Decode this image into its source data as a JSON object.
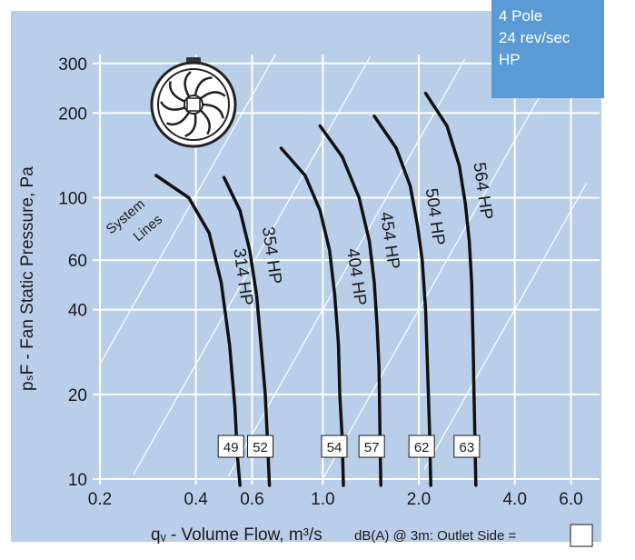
{
  "colors": {
    "panel": "#b9cfe9",
    "grid": "#ffffff",
    "curve": "#111111",
    "info_box": "#5b9bd5",
    "text": "#1a1a1a"
  },
  "info_box": {
    "lines": [
      "4 Pole",
      "24 rev/sec",
      "HP"
    ]
  },
  "legend_note": "dB(A) @ 3m:  Outlet  Side =",
  "fan_icon": "axial-fan-icon",
  "chart_data": {
    "type": "line",
    "x_scale": "log",
    "y_scale": "log",
    "xlabel": "qᵥ - Volume Flow, m³/s",
    "ylabel": "pₛF - Fan Static Pressure, Pa",
    "xlim": [
      0.2,
      7.0
    ],
    "ylim": [
      10,
      330
    ],
    "x_ticks": [
      0.2,
      0.4,
      0.6,
      1.0,
      2.0,
      4.0,
      6.0
    ],
    "x_tick_labels": [
      "0.2",
      "0.4",
      "0.6",
      "1.0",
      "2.0",
      "4.0",
      "6.0"
    ],
    "y_ticks": [
      10,
      20,
      40,
      60,
      100,
      200,
      300
    ],
    "y_tick_labels": [
      "10",
      "20",
      "40",
      "60",
      "100",
      "200",
      "300"
    ],
    "system_lines_label": "System Lines",
    "system_lines": [
      {
        "k": 2.5
      },
      {
        "k": 10
      },
      {
        "k": 40
      },
      {
        "k": 160
      },
      {
        "k": 640
      }
    ],
    "series": [
      {
        "name": "314 HP",
        "db": "49",
        "points": [
          [
            0.3,
            120
          ],
          [
            0.38,
            100
          ],
          [
            0.44,
            75
          ],
          [
            0.48,
            50
          ],
          [
            0.51,
            30
          ],
          [
            0.53,
            18
          ],
          [
            0.54,
            12
          ],
          [
            0.55,
            9.5
          ]
        ]
      },
      {
        "name": "354 HP",
        "db": "52",
        "points": [
          [
            0.49,
            118
          ],
          [
            0.55,
            90
          ],
          [
            0.59,
            65
          ],
          [
            0.62,
            45
          ],
          [
            0.64,
            30
          ],
          [
            0.66,
            20
          ],
          [
            0.67,
            14
          ],
          [
            0.68,
            9.5
          ]
        ]
      },
      {
        "name": "404 HP",
        "db": "54",
        "points": [
          [
            0.74,
            150
          ],
          [
            0.88,
            120
          ],
          [
            0.98,
            90
          ],
          [
            1.05,
            65
          ],
          [
            1.09,
            45
          ],
          [
            1.12,
            30
          ],
          [
            1.13,
            20
          ],
          [
            1.15,
            14
          ],
          [
            1.16,
            9.5
          ]
        ]
      },
      {
        "name": "454 HP",
        "db": "57",
        "points": [
          [
            0.98,
            180
          ],
          [
            1.15,
            140
          ],
          [
            1.3,
            100
          ],
          [
            1.4,
            70
          ],
          [
            1.45,
            50
          ],
          [
            1.48,
            35
          ],
          [
            1.5,
            25
          ],
          [
            1.51,
            15
          ],
          [
            1.52,
            9.5
          ]
        ]
      },
      {
        "name": "504 HP",
        "db": "62",
        "points": [
          [
            1.45,
            195
          ],
          [
            1.7,
            150
          ],
          [
            1.88,
            110
          ],
          [
            1.98,
            80
          ],
          [
            2.05,
            60
          ],
          [
            2.1,
            40
          ],
          [
            2.13,
            25
          ],
          [
            2.16,
            15
          ],
          [
            2.18,
            9.5
          ]
        ]
      },
      {
        "name": "564 HP",
        "db": "63",
        "points": [
          [
            2.1,
            235
          ],
          [
            2.45,
            180
          ],
          [
            2.68,
            130
          ],
          [
            2.8,
            95
          ],
          [
            2.88,
            70
          ],
          [
            2.93,
            50
          ],
          [
            2.96,
            30
          ],
          [
            2.98,
            20
          ],
          [
            3.0,
            14
          ],
          [
            3.02,
            9.5
          ]
        ]
      }
    ]
  }
}
